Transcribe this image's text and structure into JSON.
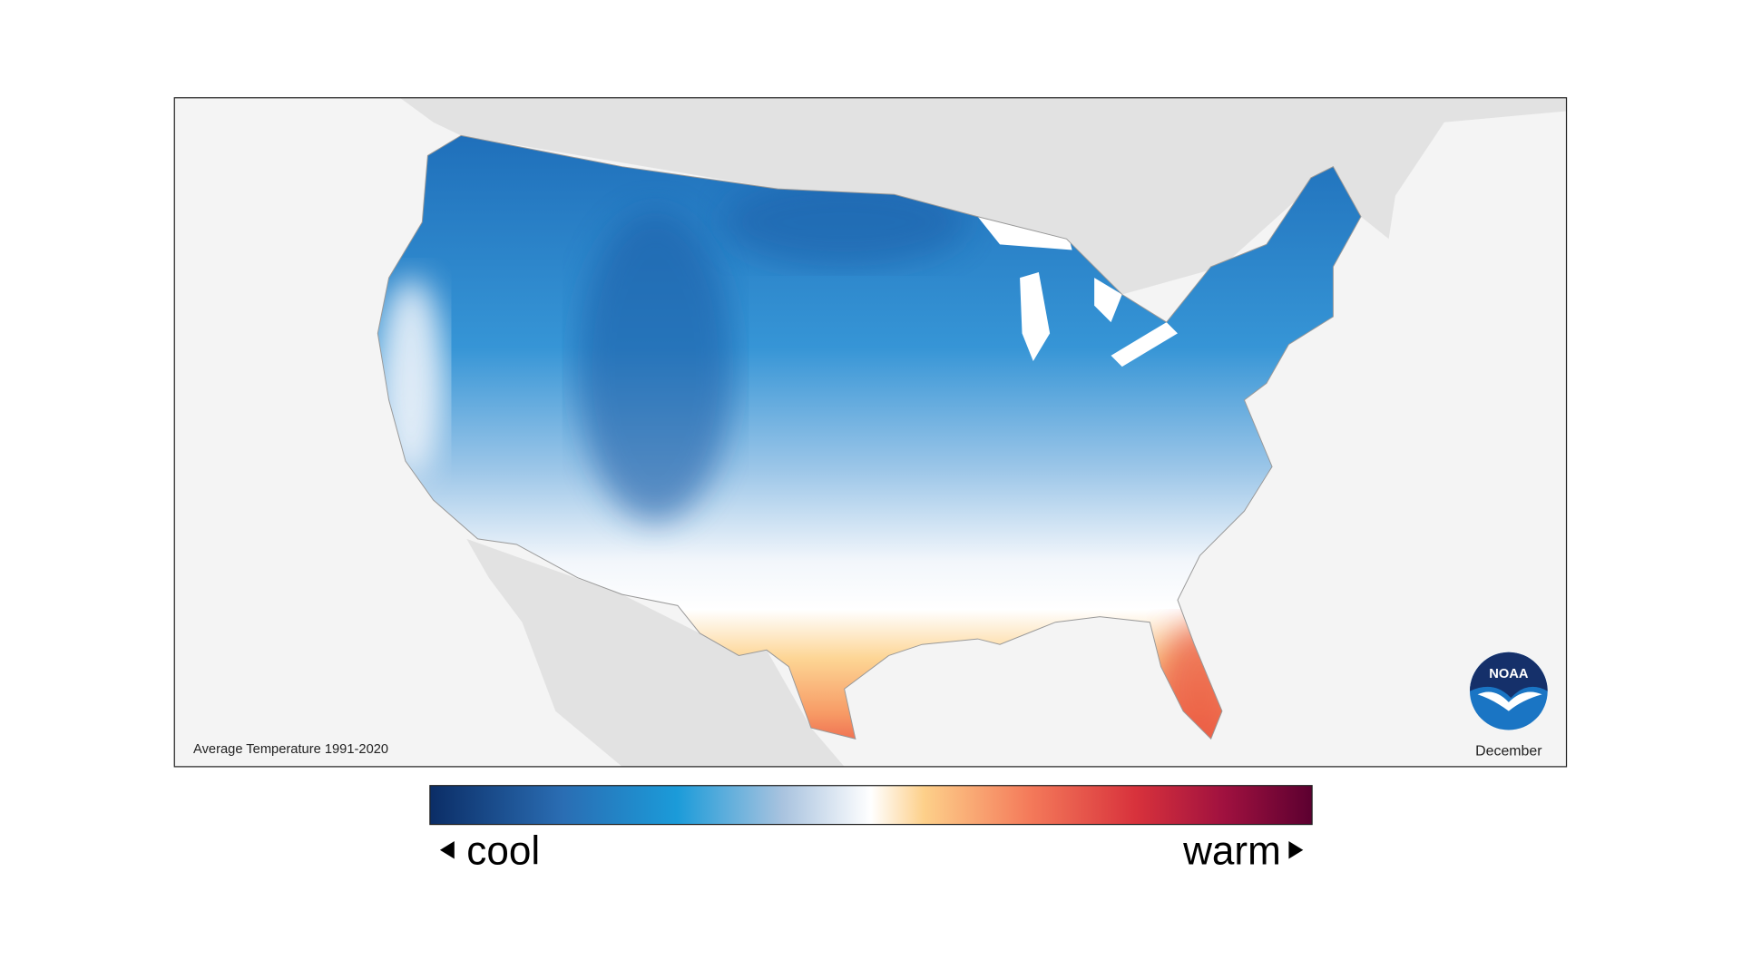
{
  "map": {
    "caption": "Average Temperature 1991-2020",
    "month": "December"
  },
  "logo": {
    "text": "NOAA"
  },
  "legend": {
    "low_label": "cool",
    "high_label": "warm"
  }
}
